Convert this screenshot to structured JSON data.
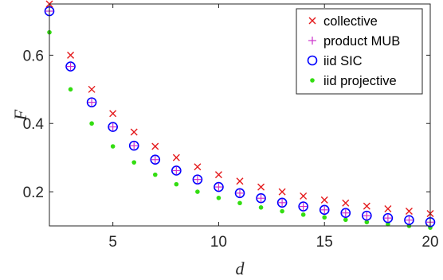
{
  "chart_data": {
    "type": "scatter",
    "xlabel": "d",
    "ylabel": "F",
    "xlim": [
      2,
      20
    ],
    "ylim": [
      0.1,
      0.75
    ],
    "xticks": [
      5,
      10,
      15,
      20
    ],
    "xtick_labels": [
      "5",
      "10",
      "15",
      "20"
    ],
    "yticks": [
      0.2,
      0.4,
      0.6
    ],
    "ytick_labels": [
      "0.2",
      "0.4",
      "0.6"
    ],
    "grid": false,
    "legend_position": "top-right",
    "series": [
      {
        "name": "collective",
        "marker": "x",
        "color": "#e41a1c",
        "x": [
          2,
          3,
          4,
          5,
          6,
          7,
          8,
          9,
          10,
          11,
          12,
          13,
          14,
          15,
          16,
          17,
          18,
          19,
          20
        ],
        "y": [
          0.75,
          0.6,
          0.5,
          0.429,
          0.375,
          0.333,
          0.3,
          0.273,
          0.25,
          0.231,
          0.214,
          0.2,
          0.1875,
          0.176,
          0.167,
          0.158,
          0.15,
          0.143,
          0.136
        ]
      },
      {
        "name": "product MUB",
        "marker": "+",
        "color": "#cc33cc",
        "x": [
          2,
          3,
          4,
          5,
          6,
          7,
          8,
          9,
          10,
          11,
          12,
          13,
          14,
          15,
          16,
          17,
          18,
          19,
          20
        ],
        "y": [
          0.729,
          0.567,
          0.462,
          0.39,
          0.335,
          0.294,
          0.262,
          0.236,
          0.214,
          0.196,
          0.181,
          0.168,
          0.157,
          0.147,
          0.138,
          0.13,
          0.123,
          0.117,
          0.111
        ]
      },
      {
        "name": "iid SIC",
        "marker": "o",
        "color": "#0000ff",
        "x": [
          2,
          3,
          4,
          5,
          6,
          7,
          8,
          9,
          10,
          11,
          12,
          13,
          14,
          15,
          16,
          17,
          18,
          19,
          20
        ],
        "y": [
          0.729,
          0.567,
          0.462,
          0.39,
          0.335,
          0.294,
          0.262,
          0.236,
          0.214,
          0.196,
          0.181,
          0.168,
          0.157,
          0.147,
          0.138,
          0.13,
          0.123,
          0.117,
          0.111
        ]
      },
      {
        "name": "iid projective",
        "marker": "dot",
        "color": "#33dd11",
        "x": [
          2,
          3,
          4,
          5,
          6,
          7,
          8,
          9,
          10,
          11,
          12,
          13,
          14,
          15,
          16,
          17,
          18,
          19,
          20
        ],
        "y": [
          0.667,
          0.5,
          0.4,
          0.333,
          0.286,
          0.25,
          0.222,
          0.2,
          0.182,
          0.167,
          0.154,
          0.143,
          0.133,
          0.125,
          0.118,
          0.111,
          0.105,
          0.1,
          0.095
        ]
      }
    ]
  }
}
